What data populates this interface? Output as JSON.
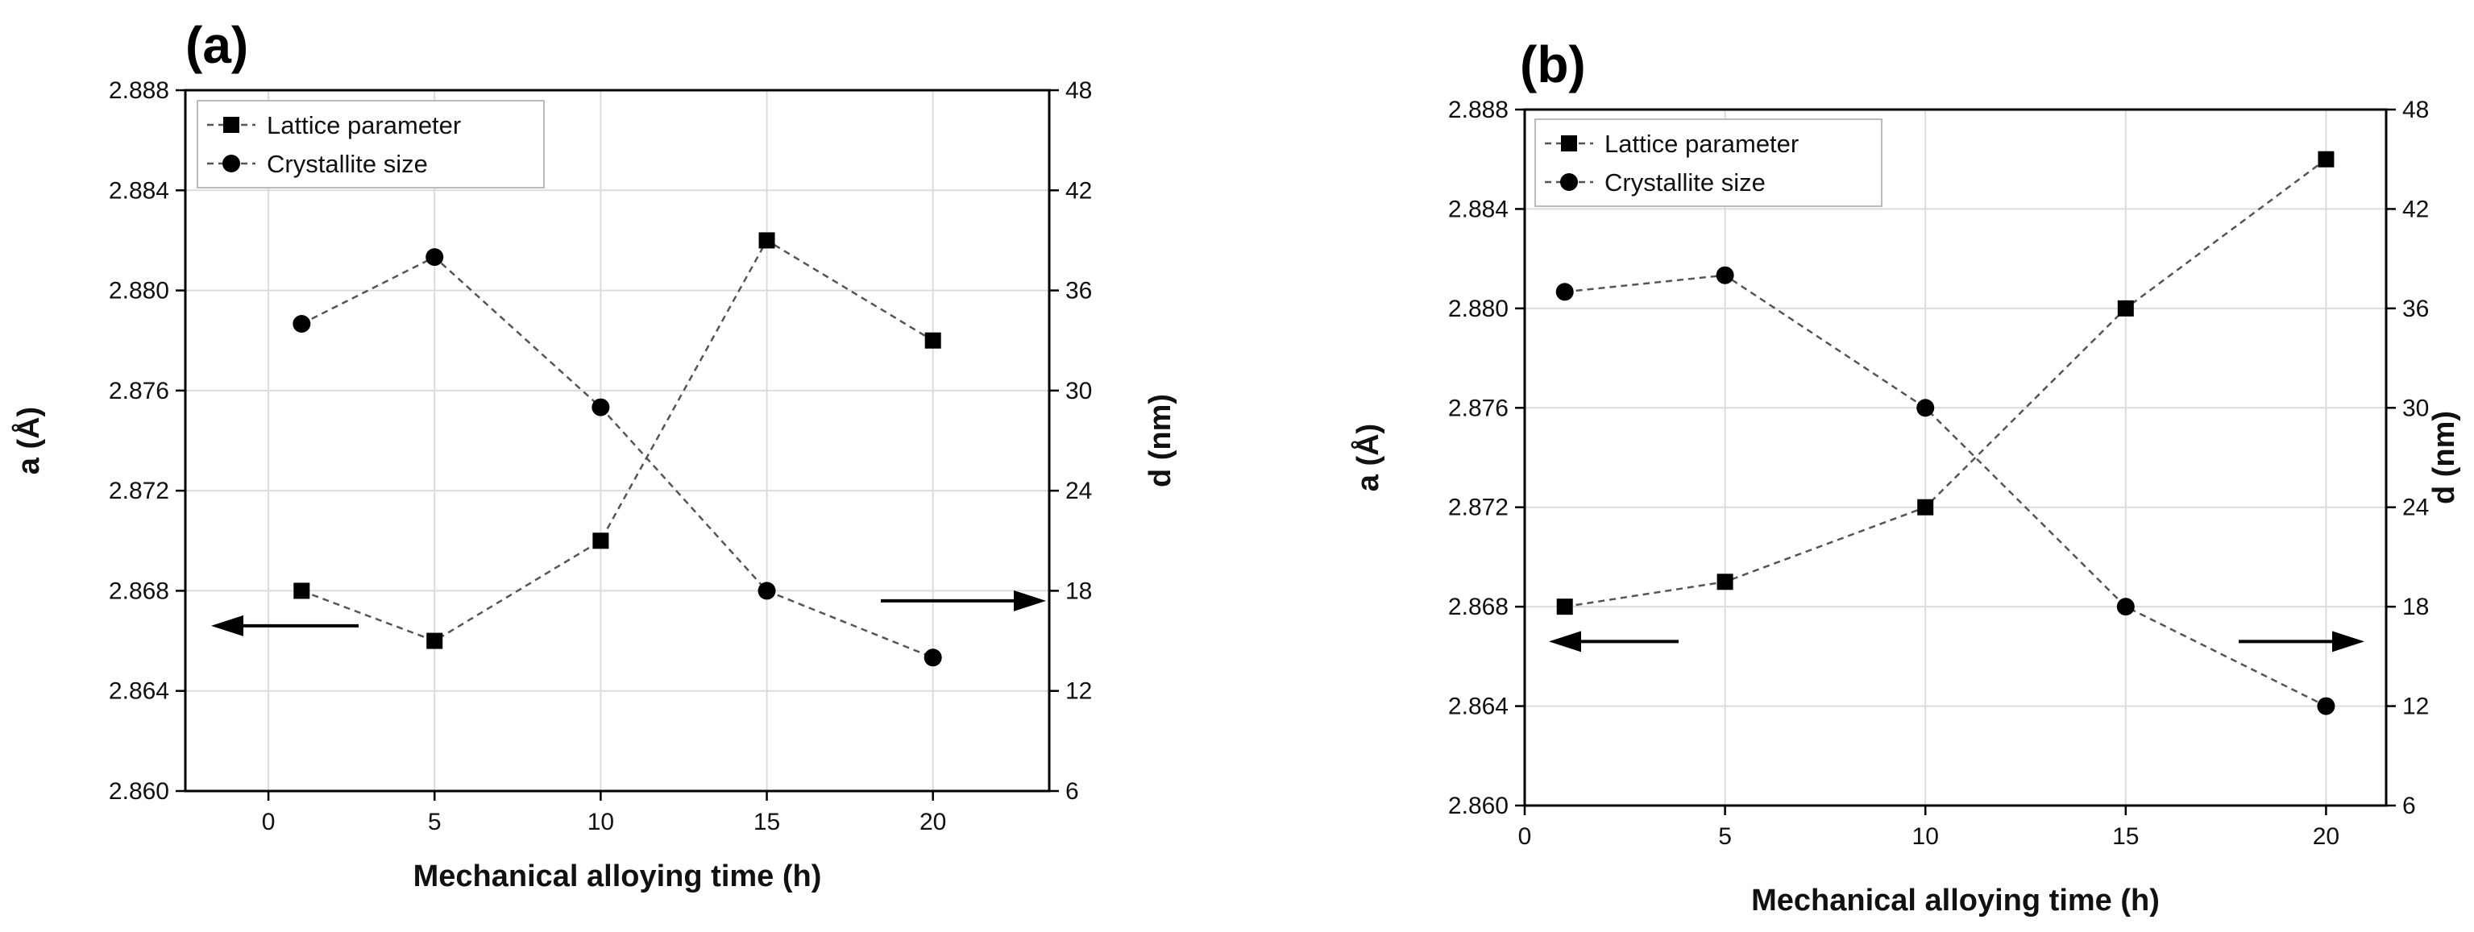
{
  "chart_data": [
    {
      "panel": "(a)",
      "type": "line",
      "xlabel": "Mechanical alloying time (h)",
      "ylabel_left": "a (Å)",
      "ylabel_right": "d (nm)",
      "xlim": [
        -2.5,
        23.5
      ],
      "xticks": [
        0,
        5,
        10,
        15,
        20
      ],
      "ylim_left": [
        2.86,
        2.888
      ],
      "yticks_left": [
        "2.860",
        "2.864",
        "2.868",
        "2.872",
        "2.876",
        "2.880",
        "2.884",
        "2.888"
      ],
      "ylim_right": [
        6,
        48
      ],
      "yticks_right": [
        "6",
        "12",
        "18",
        "24",
        "30",
        "36",
        "42",
        "48"
      ],
      "grid": true,
      "legend_position": "top-left",
      "arrow_left_y": 2.8666,
      "arrow_right_y": 2.8676,
      "series": [
        {
          "name": "Lattice parameter",
          "marker": "square",
          "axis": "left",
          "x": [
            1,
            5,
            10,
            15,
            20
          ],
          "values": [
            2.868,
            2.866,
            2.87,
            2.882,
            2.878
          ]
        },
        {
          "name": "Crystallite size",
          "marker": "circle",
          "axis": "right",
          "x": [
            1,
            5,
            10,
            15,
            20
          ],
          "values": [
            34,
            38,
            29,
            18,
            14
          ]
        }
      ]
    },
    {
      "panel": "(b)",
      "type": "line",
      "xlabel": "Mechanical alloying time (h)",
      "ylabel_left": "a (Å)",
      "ylabel_right": "d (nm)",
      "xlim": [
        0,
        21.5
      ],
      "xticks": [
        0,
        5,
        10,
        15,
        20
      ],
      "ylim_left": [
        2.86,
        2.888
      ],
      "yticks_left": [
        "2.860",
        "2.864",
        "2.868",
        "2.872",
        "2.876",
        "2.880",
        "2.884",
        "2.888"
      ],
      "ylim_right": [
        6,
        48
      ],
      "yticks_right": [
        "6",
        "12",
        "18",
        "24",
        "30",
        "36",
        "42",
        "48"
      ],
      "grid": true,
      "legend_position": "top-left",
      "arrow_left_y": 2.8666,
      "arrow_right_y": 2.8666,
      "series": [
        {
          "name": "Lattice parameter",
          "marker": "square",
          "axis": "left",
          "x": [
            1,
            5,
            10,
            15,
            20
          ],
          "values": [
            2.868,
            2.869,
            2.872,
            2.88,
            2.886
          ]
        },
        {
          "name": "Crystallite size",
          "marker": "circle",
          "axis": "right",
          "x": [
            1,
            5,
            10,
            15,
            20
          ],
          "values": [
            37,
            38,
            30,
            18,
            12
          ]
        }
      ]
    }
  ]
}
